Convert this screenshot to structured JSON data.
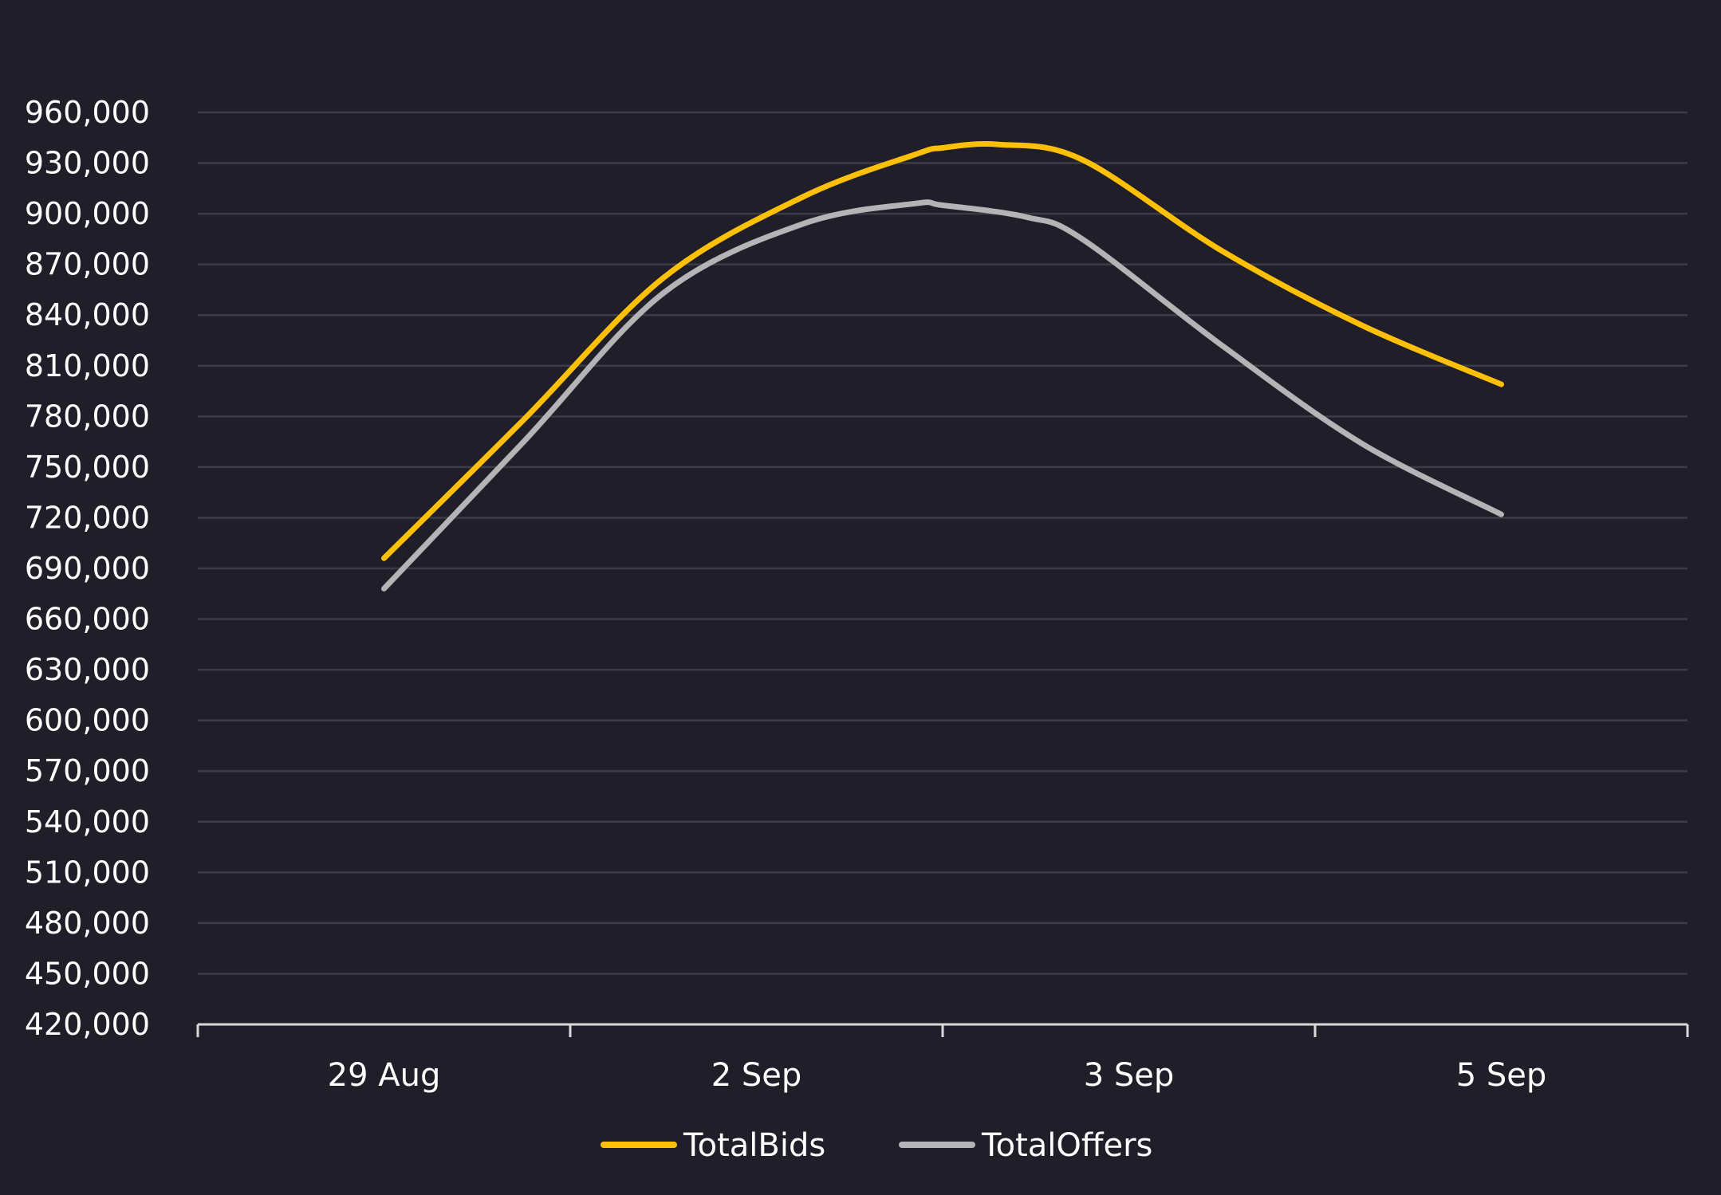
{
  "chart_data": {
    "type": "line",
    "title": "",
    "xlabel": "",
    "ylabel": "",
    "categories": [
      "29 Aug",
      "2 Sep",
      "3 Sep",
      "5 Sep"
    ],
    "series": [
      {
        "name": "TotalBids",
        "color": "#fec007",
        "values": [
          [
            0.0,
            696000
          ],
          [
            0.5,
            778000
          ],
          [
            1.0,
            862000
          ],
          [
            1.5,
            910000
          ],
          [
            1.9,
            935000
          ],
          [
            2.0,
            939000
          ],
          [
            2.2,
            941000
          ],
          [
            2.5,
            932000
          ],
          [
            3.0,
            878000
          ],
          [
            3.5,
            834000
          ],
          [
            4.0,
            799000
          ]
        ]
      },
      {
        "name": "TotalOffers",
        "color": "#b4b3b5",
        "values": [
          [
            0.0,
            678000
          ],
          [
            0.5,
            765000
          ],
          [
            1.0,
            853000
          ],
          [
            1.5,
            894000
          ],
          [
            1.9,
            906000
          ],
          [
            2.0,
            905000
          ],
          [
            2.3,
            898000
          ],
          [
            2.5,
            885000
          ],
          [
            3.0,
            822000
          ],
          [
            3.5,
            764000
          ],
          [
            4.0,
            722000
          ]
        ]
      }
    ],
    "y_ticks": [
      "420,000",
      "450,000",
      "480,000",
      "510,000",
      "540,000",
      "570,000",
      "600,000",
      "630,000",
      "660,000",
      "690,000",
      "720,000",
      "750,000",
      "780,000",
      "810,000",
      "840,000",
      "870,000",
      "900,000",
      "930,000",
      "960,000"
    ],
    "ylim": [
      420000,
      960000
    ],
    "y_step": 30000,
    "grid": true,
    "legend_placement": "bottom-center",
    "colors": {
      "background": "#1f1e29",
      "grid": "#3d3c46",
      "axis": "#d9d9d9",
      "text": "#ffffff"
    }
  }
}
